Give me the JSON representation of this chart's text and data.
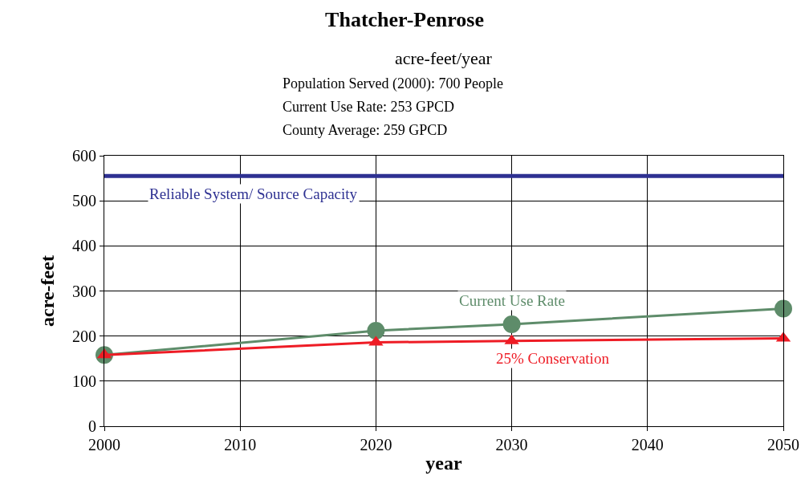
{
  "chart_data": {
    "type": "line",
    "title": "Thatcher-Penrose",
    "subtitle": "acre-feet/year",
    "annotations": [
      "Population Served (2000): 700 People",
      "Current Use Rate: 253 GPCD",
      "County Average: 259 GPCD"
    ],
    "xlabel": "year",
    "ylabel": "acre-feet",
    "x": [
      2000,
      2020,
      2030,
      2050
    ],
    "series": [
      {
        "name": "Reliable System/ Source Capacity",
        "color": "#2e3192",
        "values": [
          555,
          555,
          555,
          555
        ],
        "marker": "none"
      },
      {
        "name": "Current Use Rate",
        "color": "#5e8c6a",
        "values": [
          158,
          212,
          226,
          261
        ],
        "marker": "circle"
      },
      {
        "name": "25% Conservation",
        "color": "#ee1c25",
        "values": [
          158,
          186,
          189,
          195
        ],
        "marker": "triangle"
      }
    ],
    "xlim": [
      2000,
      2050
    ],
    "xticks": [
      2000,
      2010,
      2020,
      2030,
      2040,
      2050
    ],
    "ylim": [
      0,
      600
    ],
    "yticks": [
      0,
      100,
      200,
      300,
      400,
      500,
      600
    ],
    "grid": true,
    "legend": false
  }
}
